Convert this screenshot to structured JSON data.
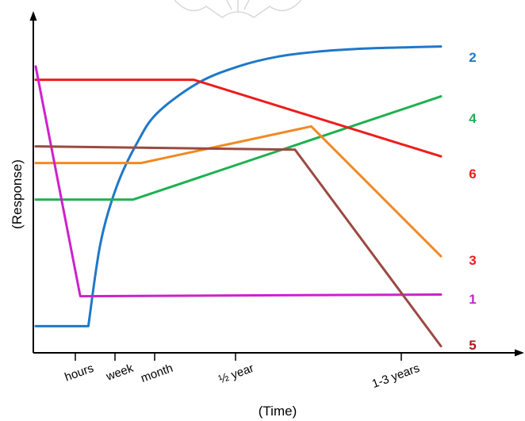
{
  "chart_data": {
    "type": "line",
    "xlabel": "(Time)",
    "ylabel": "(Response)",
    "x_ticks": [
      "hours",
      "week",
      "month",
      "½ year",
      "1-3 years"
    ],
    "xlim": [
      0,
      10
    ],
    "ylim": [
      0,
      100
    ],
    "grid": false,
    "legend": "none",
    "series": [
      {
        "name": "2",
        "color": "#1f78c8",
        "curve": "saturating",
        "x": [
          0,
          1.3,
          1.6,
          2.0,
          2.5,
          3.0,
          4.0,
          5.0,
          6.0,
          7.0,
          8.0,
          9.0,
          10.0
        ],
        "y": [
          8,
          8,
          33,
          50,
          63,
          72,
          81,
          86,
          89,
          90.5,
          91.3,
          91.7,
          92
        ]
      },
      {
        "name": "4",
        "color": "#1fb050",
        "x": [
          0,
          2.4,
          10
        ],
        "y": [
          46,
          46,
          77
        ]
      },
      {
        "name": "6",
        "color": "#ee1c1c",
        "x": [
          0,
          3.9,
          10
        ],
        "y": [
          82,
          82,
          59
        ]
      },
      {
        "name": "3",
        "color": "#f08a24",
        "x": [
          0,
          2.6,
          6.8,
          10
        ],
        "y": [
          57,
          57,
          68,
          29
        ]
      },
      {
        "name": "1",
        "color": "#cc22cc",
        "x": [
          0,
          1.1,
          10
        ],
        "y": [
          86,
          17,
          17.5
        ]
      },
      {
        "name": "5",
        "color": "#9a4a42",
        "x": [
          0,
          6.4,
          10
        ],
        "y": [
          62,
          61,
          2
        ]
      }
    ],
    "series_labels": [
      {
        "text": "2",
        "color": "#1f78c8"
      },
      {
        "text": "4",
        "color": "#1fb050"
      },
      {
        "text": "6",
        "color": "#ee1c1c"
      },
      {
        "text": "3",
        "color": "#ee1c1c"
      },
      {
        "text": "1",
        "color": "#cc22cc"
      },
      {
        "text": "5",
        "color": "#b01818"
      }
    ]
  }
}
